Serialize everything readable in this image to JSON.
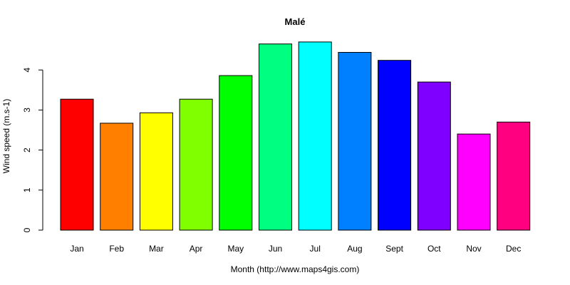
{
  "chart_data": {
    "type": "bar",
    "title": "Malé",
    "xlabel": "Month (http://www.maps4gis.com)",
    "ylabel": "Wind speed (m.s-1)",
    "categories": [
      "Jan",
      "Feb",
      "Mar",
      "Apr",
      "May",
      "Jun",
      "Jul",
      "Aug",
      "Sept",
      "Oct",
      "Nov",
      "Dec"
    ],
    "values": [
      3.27,
      2.67,
      2.93,
      3.27,
      3.86,
      4.65,
      4.7,
      4.44,
      4.24,
      3.7,
      2.4,
      2.7
    ],
    "colors": [
      "#FF0000",
      "#FF8000",
      "#FFFF00",
      "#80FF00",
      "#00FF00",
      "#00FF80",
      "#00FFFF",
      "#0080FF",
      "#0000FF",
      "#8000FF",
      "#FF00FF",
      "#FF0080"
    ],
    "yticks": [
      0,
      1,
      2,
      3,
      4
    ],
    "ylim": [
      0,
      4.7
    ],
    "grid": false,
    "legend": "none"
  }
}
